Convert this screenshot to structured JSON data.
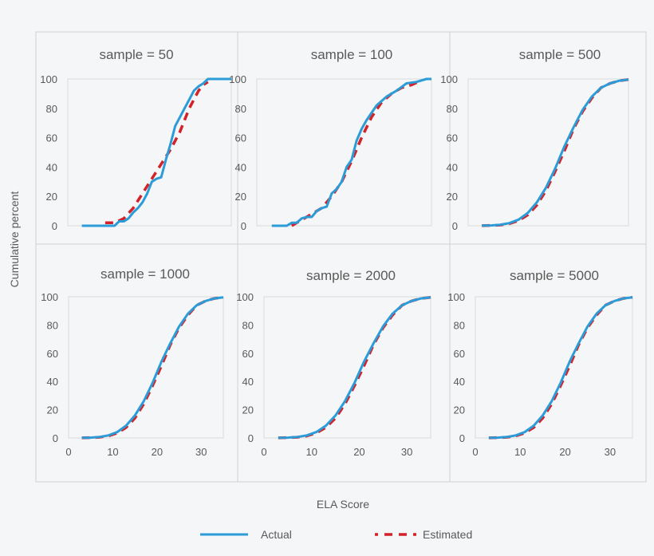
{
  "chart_data": {
    "type": "line",
    "ylabel": "Cumulative percent",
    "xlabel": "ELA Score",
    "xlim": [
      0,
      35
    ],
    "ylim": [
      0,
      100
    ],
    "x_ticks": [
      0,
      10,
      20,
      30
    ],
    "y_ticks": [
      0,
      20,
      40,
      60,
      80,
      100
    ],
    "grid": false,
    "legend": {
      "placement": "bottom",
      "entries": [
        "Actual",
        "Estimated"
      ]
    },
    "colors": {
      "Actual": "#2b9cd8",
      "Estimated": "#d2232a"
    },
    "panels": [
      {
        "title": "sample = 50",
        "series": [
          {
            "name": "Actual",
            "x": [
              3,
              6,
              9,
              10,
              11,
              12,
              13,
              14,
              15,
              16,
              17,
              18,
              19,
              20,
              21,
              22,
              23,
              24,
              25,
              26,
              27,
              28,
              29,
              30,
              35
            ],
            "y": [
              0,
              0,
              0,
              0,
              3,
              3,
              5,
              9,
              12,
              16,
              22,
              30,
              32,
              33,
              45,
              56,
              68,
              74,
              80,
              86,
              92,
              95,
              97,
              100,
              100
            ]
          },
          {
            "name": "Estimated",
            "x": [
              8,
              10,
              12,
              14,
              16,
              18,
              20,
              22,
              24,
              26,
              28,
              29,
              30
            ],
            "y": [
              2,
              2,
              5,
              12,
              22,
              32,
              42,
              52,
              64,
              80,
              92,
              96,
              98
            ]
          }
        ]
      },
      {
        "title": "sample = 100",
        "series": [
          {
            "name": "Actual",
            "x": [
              3,
              6,
              7,
              8,
              9,
              10,
              11,
              12,
              13,
              14,
              15,
              16,
              17,
              18,
              19,
              20,
              21,
              22,
              24,
              26,
              28,
              30,
              32,
              34,
              35
            ],
            "y": [
              0,
              0,
              2,
              2,
              5,
              6,
              6,
              10,
              12,
              13,
              22,
              25,
              30,
              40,
              45,
              58,
              66,
              72,
              82,
              88,
              92,
              97,
              98,
              100,
              100
            ]
          },
          {
            "name": "Estimated",
            "x": [
              7,
              9,
              11,
              13,
              15,
              17,
              19,
              21,
              23,
              25,
              27,
              29,
              31,
              33
            ],
            "y": [
              0,
              4,
              8,
              12,
              20,
              30,
              44,
              60,
              74,
              84,
              90,
              94,
              96,
              99
            ]
          }
        ]
      },
      {
        "title": "sample = 500",
        "series": [
          {
            "name": "Actual",
            "x": [
              3,
              5,
              7,
              9,
              11,
              13,
              15,
              17,
              19,
              21,
              23,
              25,
              27,
              29,
              31,
              33,
              35
            ],
            "y": [
              0.1,
              0.2,
              0.7,
              1.8,
              4.2,
              8.7,
              15.9,
              26,
              39,
              54,
              67,
              79,
              88,
              94,
              97,
              98.8,
              99.6
            ]
          },
          {
            "name": "Estimated",
            "x": [
              3,
              5,
              7,
              9,
              11,
              13,
              15,
              17,
              19,
              21,
              23,
              25,
              27,
              29,
              31,
              33,
              35
            ],
            "y": [
              0.05,
              0.2,
              0.5,
              1.4,
              3.5,
              7.4,
              14,
              24,
              37,
              51,
              66,
              78,
              87,
              94,
              97,
              98.8,
              99.6
            ]
          }
        ]
      },
      {
        "title": "sample = 1000",
        "series": [
          {
            "name": "Actual",
            "x": [
              3,
              5,
              7,
              9,
              11,
              13,
              15,
              17,
              19,
              21,
              23,
              25,
              27,
              29,
              31,
              33,
              35
            ],
            "y": [
              0.1,
              0.2,
              0.7,
              1.8,
              4.2,
              8.7,
              15.9,
              26,
              39,
              54,
              67,
              79,
              88,
              94,
              97,
              98.8,
              99.6
            ]
          },
          {
            "name": "Estimated",
            "x": [
              3,
              5,
              7,
              9,
              11,
              13,
              15,
              17,
              19,
              21,
              23,
              25,
              27,
              29,
              31,
              33,
              35
            ],
            "y": [
              0.05,
              0.2,
              0.5,
              1.4,
              3.5,
              7.4,
              14,
              24,
              37,
              51,
              66,
              78,
              87,
              94,
              97,
              98.8,
              99.6
            ]
          }
        ]
      },
      {
        "title": "sample = 2000",
        "series": [
          {
            "name": "Actual",
            "x": [
              3,
              5,
              7,
              9,
              11,
              13,
              15,
              17,
              19,
              21,
              23,
              25,
              27,
              29,
              31,
              33,
              35
            ],
            "y": [
              0.1,
              0.2,
              0.7,
              1.8,
              4.2,
              8.7,
              15.9,
              26,
              39,
              54,
              67,
              79,
              88,
              94,
              97,
              98.8,
              99.6
            ]
          },
          {
            "name": "Estimated",
            "x": [
              3,
              5,
              7,
              9,
              11,
              13,
              15,
              17,
              19,
              21,
              23,
              25,
              27,
              29,
              31,
              33,
              35
            ],
            "y": [
              0.05,
              0.2,
              0.5,
              1.4,
              3.5,
              7.4,
              14,
              24,
              37,
              51,
              66,
              78,
              87,
              94,
              97,
              98.8,
              99.6
            ]
          }
        ]
      },
      {
        "title": "sample = 5000",
        "series": [
          {
            "name": "Actual",
            "x": [
              3,
              5,
              7,
              9,
              11,
              13,
              15,
              17,
              19,
              21,
              23,
              25,
              27,
              29,
              31,
              33,
              35
            ],
            "y": [
              0.1,
              0.2,
              0.7,
              1.8,
              4.2,
              8.7,
              15.9,
              26,
              39,
              54,
              67,
              79,
              88,
              94,
              97,
              98.8,
              99.6
            ]
          },
          {
            "name": "Estimated",
            "x": [
              3,
              5,
              7,
              9,
              11,
              13,
              15,
              17,
              19,
              21,
              23,
              25,
              27,
              29,
              31,
              33,
              35
            ],
            "y": [
              0.05,
              0.2,
              0.5,
              1.4,
              3.5,
              7.4,
              14,
              24,
              37,
              51,
              66,
              78,
              87,
              94,
              97,
              98.8,
              99.6
            ]
          }
        ]
      }
    ]
  }
}
